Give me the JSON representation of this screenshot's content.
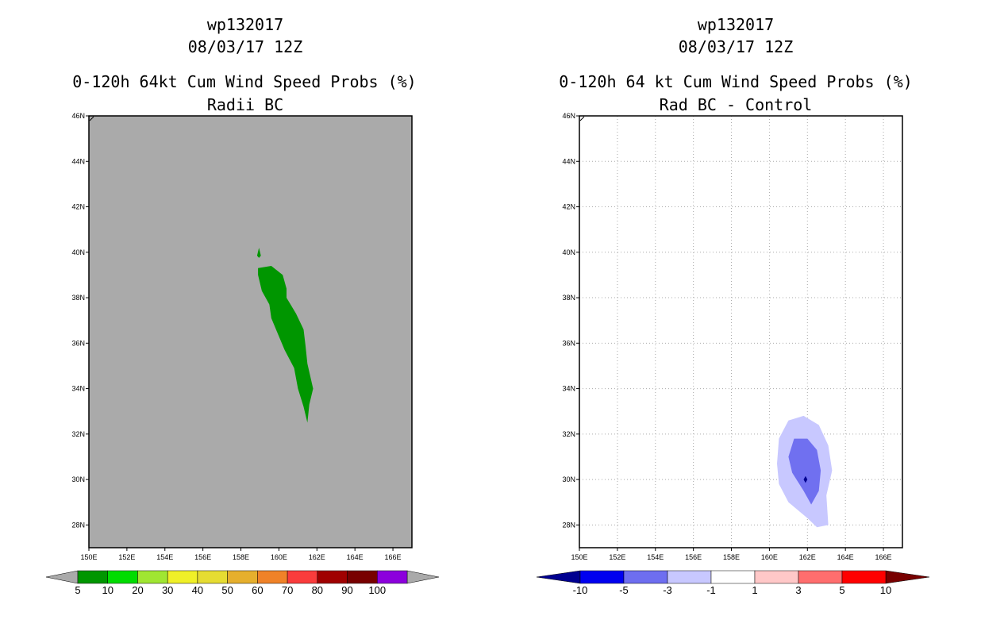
{
  "left": {
    "storm_id": "wp132017",
    "date": "08/03/17 12Z",
    "title_line1": "0-120h 64kt Cum Wind Speed Probs (%)",
    "title_line2": "Radii BC"
  },
  "right": {
    "storm_id": "wp132017",
    "date": "08/03/17 12Z",
    "title_line1": "0-120h 64 kt Cum Wind Speed Probs (%)",
    "title_line2": "Rad BC - Control"
  },
  "colors": {
    "map_fill": "#aaaaaa",
    "prob_green": "#009600",
    "diff_light_blue": "#c8c8ff",
    "diff_mid_blue": "#7070f0",
    "diff_dark_blue": "#000090"
  },
  "chart_data": [
    {
      "type": "heatmap",
      "title": "0-120h 64kt Cum Wind Speed Probs (%)",
      "subtitle": "Radii BC",
      "x_ticks": [
        "150E",
        "152E",
        "154E",
        "156E",
        "158E",
        "160E",
        "162E",
        "164E",
        "166E"
      ],
      "y_ticks": [
        "28N",
        "30N",
        "32N",
        "34N",
        "36N",
        "38N",
        "40N",
        "42N",
        "44N",
        "46N"
      ],
      "xlim": [
        150,
        167
      ],
      "ylim": [
        27,
        46
      ],
      "grid": false,
      "colorbar": {
        "labels": [
          "5",
          "10",
          "20",
          "30",
          "40",
          "50",
          "60",
          "70",
          "80",
          "90",
          "100"
        ],
        "colors": [
          "#009600",
          "#00dc00",
          "#a0e632",
          "#f0f028",
          "#e6dc32",
          "#e6af2d",
          "#f08228",
          "#fa3c3c",
          "#a00000",
          "#780000",
          "#8c00dc"
        ]
      },
      "regions": [
        {
          "label": "5-10",
          "color": "#009600",
          "lonlat": [
            [
              158.9,
              39.3
            ],
            [
              159.6,
              39.4
            ],
            [
              160.2,
              39.0
            ],
            [
              160.4,
              38.4
            ],
            [
              160.4,
              38.0
            ],
            [
              160.9,
              37.3
            ],
            [
              161.3,
              36.6
            ],
            [
              161.4,
              35.9
            ],
            [
              161.5,
              35.1
            ],
            [
              161.8,
              34.0
            ],
            [
              161.6,
              33.3
            ],
            [
              161.5,
              32.5
            ],
            [
              161.3,
              33.2
            ],
            [
              161.0,
              34.0
            ],
            [
              160.8,
              34.9
            ],
            [
              160.3,
              35.7
            ],
            [
              159.9,
              36.5
            ],
            [
              159.6,
              37.1
            ],
            [
              159.5,
              37.7
            ],
            [
              159.1,
              38.3
            ],
            [
              158.9,
              39.0
            ]
          ]
        },
        {
          "label": "5-10",
          "color": "#009600",
          "lonlat": [
            [
              158.95,
              40.2
            ],
            [
              159.05,
              39.85
            ],
            [
              158.95,
              39.75
            ],
            [
              158.85,
              39.85
            ]
          ]
        }
      ]
    },
    {
      "type": "heatmap",
      "title": "0-120h 64 kt Cum Wind Speed Probs (%)",
      "subtitle": "Rad BC - Control",
      "x_ticks": [
        "150E",
        "152E",
        "154E",
        "156E",
        "158E",
        "160E",
        "162E",
        "164E",
        "166E"
      ],
      "y_ticks": [
        "28N",
        "30N",
        "32N",
        "34N",
        "36N",
        "38N",
        "40N",
        "42N",
        "44N",
        "46N"
      ],
      "xlim": [
        150,
        167
      ],
      "ylim": [
        27,
        46
      ],
      "grid": true,
      "colorbar": {
        "labels": [
          "-10",
          "-5",
          "-3",
          "-1",
          "1",
          "3",
          "5",
          "10"
        ],
        "colors": [
          "#000090",
          "#0000f0",
          "#6e6ef0",
          "#c8c8ff",
          "#ffffff",
          "#ffc8c8",
          "#ff6e6e",
          "#ff0000",
          "#780000"
        ]
      },
      "regions": [
        {
          "label": "-3 to -1",
          "color": "#c8c8ff",
          "lonlat": [
            [
              161.0,
              32.6
            ],
            [
              161.8,
              32.8
            ],
            [
              162.6,
              32.4
            ],
            [
              163.1,
              31.5
            ],
            [
              163.3,
              30.4
            ],
            [
              163.0,
              29.3
            ],
            [
              163.1,
              28.0
            ],
            [
              162.5,
              27.9
            ],
            [
              162.0,
              28.3
            ],
            [
              161.0,
              29.0
            ],
            [
              160.5,
              29.8
            ],
            [
              160.4,
              30.7
            ],
            [
              160.5,
              31.8
            ]
          ]
        },
        {
          "label": "-5 to -3",
          "color": "#7070f0",
          "lonlat": [
            [
              161.3,
              31.8
            ],
            [
              162.0,
              31.8
            ],
            [
              162.5,
              31.3
            ],
            [
              162.7,
              30.4
            ],
            [
              162.6,
              29.5
            ],
            [
              162.2,
              28.9
            ],
            [
              161.8,
              29.5
            ],
            [
              161.2,
              30.3
            ],
            [
              161.0,
              31.0
            ]
          ]
        },
        {
          "label": "-10 to -5",
          "color": "#000090",
          "lonlat": [
            [
              161.9,
              30.15
            ],
            [
              162.0,
              30.0
            ],
            [
              161.9,
              29.85
            ],
            [
              161.8,
              30.0
            ]
          ]
        }
      ]
    }
  ]
}
